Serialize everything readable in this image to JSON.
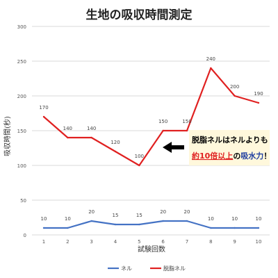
{
  "chart_data": {
    "type": "line",
    "title": "生地の吸収時間測定",
    "xlabel": "試験回数",
    "ylabel": "吸収時間(秒)",
    "categories": [
      "1",
      "2",
      "3",
      "4",
      "5",
      "6",
      "7",
      "8",
      "9",
      "10"
    ],
    "ylim": [
      0,
      300
    ],
    "yticks": [
      0,
      50,
      100,
      150,
      200,
      250,
      300
    ],
    "grid": true,
    "legend_position": "bottom",
    "series": [
      {
        "name": "ネル",
        "color": "#4472C4",
        "values": [
          10,
          10,
          20,
          15,
          15,
          20,
          20,
          10,
          10,
          10
        ]
      },
      {
        "name": "脱脂ネル",
        "color": "#E02020",
        "values": [
          170,
          140,
          140,
          120,
          100,
          150,
          150,
          240,
          200,
          190
        ]
      }
    ]
  },
  "annotation": {
    "line1": "脱脂ネルはネルよりも",
    "line2_part1": "約10倍以上",
    "line2_part2": "の",
    "line2_part3": "吸水力",
    "line2_part4": "！",
    "colors": {
      "box_bg": "#FFF8DC",
      "emphasis_red": "#E02020",
      "emphasis_blue": "#1F3FA0",
      "arrow": "#000000"
    }
  }
}
